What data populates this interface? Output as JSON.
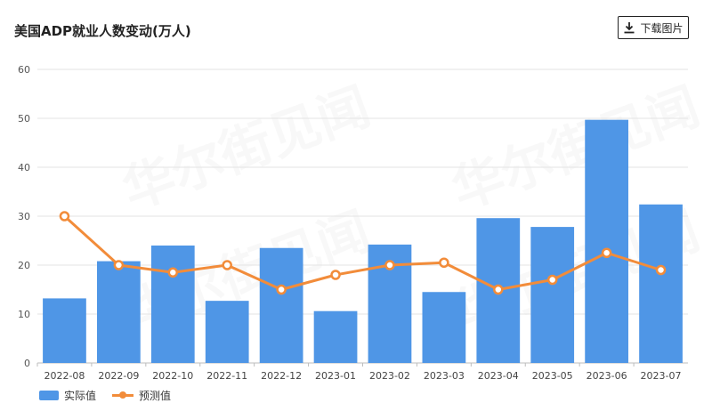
{
  "header": {
    "title": "美国ADP就业人数变动(万人)",
    "download_label": "下载图片"
  },
  "legend": {
    "actual_label": "实际值",
    "forecast_label": "预测值"
  },
  "colors": {
    "bar": "#4f96e6",
    "line": "#f28c3a",
    "grid": "#e3e3e3"
  },
  "chart_data": {
    "type": "bar",
    "categories": [
      "2022-08",
      "2022-09",
      "2022-10",
      "2022-11",
      "2022-12",
      "2023-01",
      "2023-02",
      "2023-03",
      "2023-04",
      "2023-05",
      "2023-06",
      "2023-07"
    ],
    "series": [
      {
        "name": "实际值",
        "type": "bar",
        "values": [
          13.2,
          20.8,
          24.0,
          12.7,
          23.5,
          10.6,
          24.2,
          14.5,
          29.6,
          27.8,
          49.7,
          32.4
        ]
      },
      {
        "name": "预测值",
        "type": "line",
        "values": [
          30.0,
          20.0,
          18.5,
          20.0,
          15.0,
          18.0,
          20.0,
          20.5,
          15.0,
          17.0,
          22.5,
          19.0
        ]
      }
    ],
    "ylim": [
      0,
      60
    ],
    "yticks": [
      0,
      10,
      20,
      30,
      40,
      50,
      60
    ],
    "grid": true,
    "legend_position": "bottom-left"
  }
}
